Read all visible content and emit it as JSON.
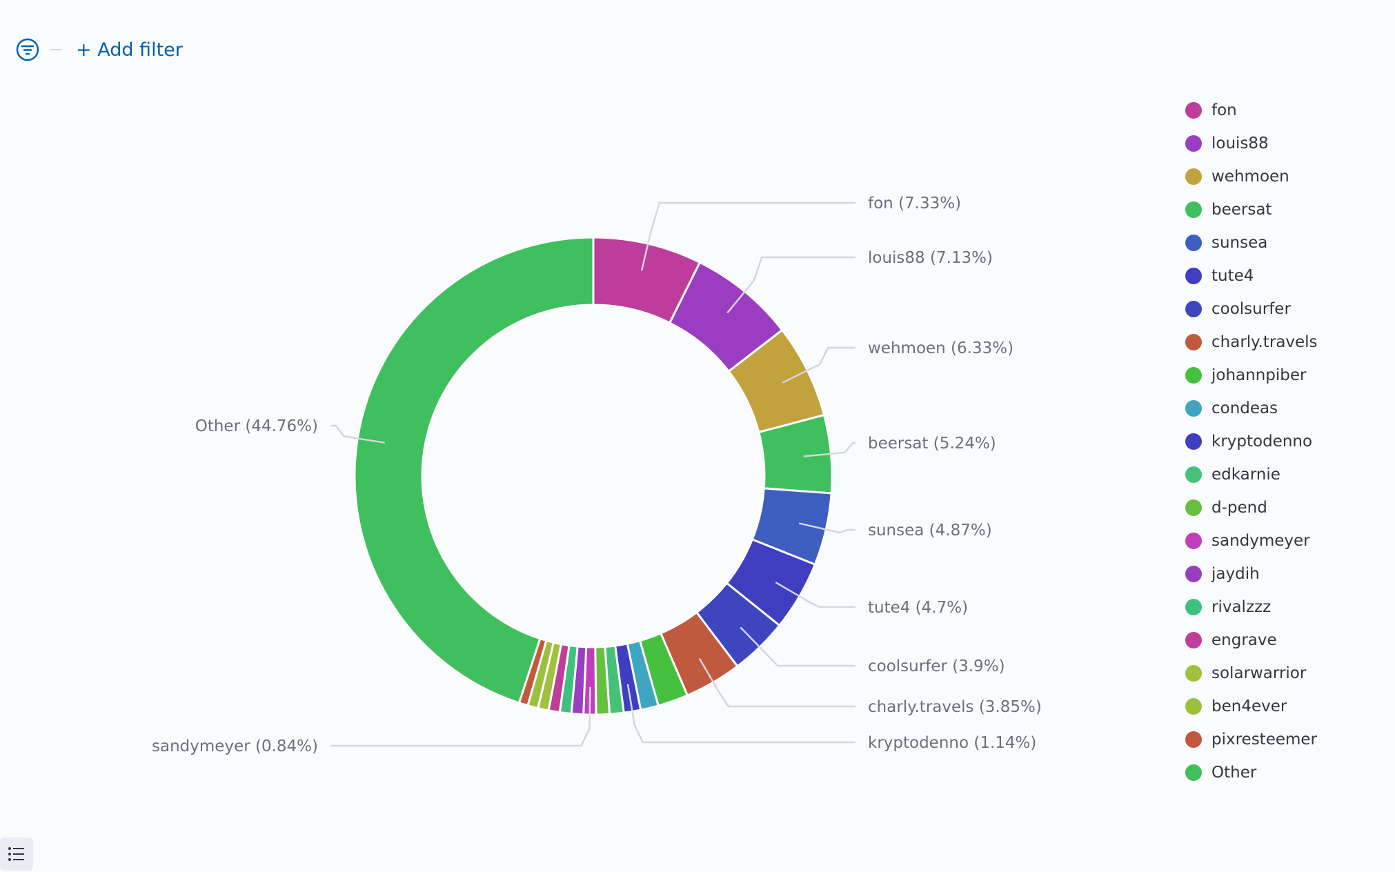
{
  "filter_bar": {
    "add_filter_label": "+ Add filter"
  },
  "chart_data": {
    "type": "pie",
    "donut": true,
    "slices": [
      {
        "name": "fon",
        "label": "fon (7.33%)",
        "value": 7.33,
        "color": "#bd3c9c"
      },
      {
        "name": "louis88",
        "label": "louis88 (7.13%)",
        "value": 7.13,
        "color": "#9b3dc2"
      },
      {
        "name": "wehmoen",
        "label": "wehmoen (6.33%)",
        "value": 6.33,
        "color": "#c1a23d"
      },
      {
        "name": "beersat",
        "label": "beersat (5.24%)",
        "value": 5.24,
        "color": "#3fbf5e"
      },
      {
        "name": "sunsea",
        "label": "sunsea (4.87%)",
        "value": 4.87,
        "color": "#3d5dc1"
      },
      {
        "name": "tute4",
        "label": "tute4 (4.7%)",
        "value": 4.7,
        "color": "#3f3dc0"
      },
      {
        "name": "coolsurfer",
        "label": "coolsurfer (3.9%)",
        "value": 3.9,
        "color": "#3d45bf"
      },
      {
        "name": "charly.travels",
        "label": "charly.travels (3.85%)",
        "value": 3.85,
        "color": "#c05a3e"
      },
      {
        "name": "johannpiber",
        "label": "",
        "value": 2.05,
        "color": "#46c03e"
      },
      {
        "name": "condeas",
        "label": "",
        "value": 1.2,
        "color": "#3ea6c0"
      },
      {
        "name": "kryptodenno",
        "label": "kryptodenno (1.14%)",
        "value": 1.14,
        "color": "#3e3ec0"
      },
      {
        "name": "edkarnie",
        "label": "",
        "value": 0.95,
        "color": "#47c07a"
      },
      {
        "name": "d-pend",
        "label": "",
        "value": 0.9,
        "color": "#67bf3f"
      },
      {
        "name": "sandymeyer",
        "label": "sandymeyer (0.84%)",
        "value": 0.84,
        "color": "#c03ebc"
      },
      {
        "name": "jaydih",
        "label": "",
        "value": 0.8,
        "color": "#983ec0"
      },
      {
        "name": "rivalzzz",
        "label": "",
        "value": 0.78,
        "color": "#3ec07f"
      },
      {
        "name": "engrave",
        "label": "",
        "value": 0.75,
        "color": "#c03e97"
      },
      {
        "name": "solarwarrior",
        "label": "",
        "value": 0.72,
        "color": "#a1c03e"
      },
      {
        "name": "ben4ever",
        "label": "",
        "value": 0.7,
        "color": "#9bc03e"
      },
      {
        "name": "pixresteemer",
        "label": "",
        "value": 0.6,
        "color": "#c0593e"
      },
      {
        "name": "Other",
        "label": "Other (44.76%)",
        "value": 44.76,
        "color": "#3fbf5e"
      }
    ]
  },
  "legend": {
    "items": [
      {
        "label": "fon",
        "color": "#bd3c9c"
      },
      {
        "label": "louis88",
        "color": "#9b3dc2"
      },
      {
        "label": "wehmoen",
        "color": "#c1a23d"
      },
      {
        "label": "beersat",
        "color": "#3fbf5e"
      },
      {
        "label": "sunsea",
        "color": "#3d5dc1"
      },
      {
        "label": "tute4",
        "color": "#3f3dc0"
      },
      {
        "label": "coolsurfer",
        "color": "#3d45bf"
      },
      {
        "label": "charly.travels",
        "color": "#c05a3e"
      },
      {
        "label": "johannpiber",
        "color": "#46c03e"
      },
      {
        "label": "condeas",
        "color": "#3ea6c0"
      },
      {
        "label": "kryptodenno",
        "color": "#3e3ec0"
      },
      {
        "label": "edkarnie",
        "color": "#47c07a"
      },
      {
        "label": "d-pend",
        "color": "#67bf3f"
      },
      {
        "label": "sandymeyer",
        "color": "#c03ebc"
      },
      {
        "label": "jaydih",
        "color": "#983ec0"
      },
      {
        "label": "rivalzzz",
        "color": "#3ec07f"
      },
      {
        "label": "engrave",
        "color": "#c03e97"
      },
      {
        "label": "solarwarrior",
        "color": "#a1c03e"
      },
      {
        "label": "ben4ever",
        "color": "#9bc03e"
      },
      {
        "label": "pixresteemer",
        "color": "#c0593e"
      },
      {
        "label": "Other",
        "color": "#3fbf5e"
      }
    ]
  }
}
